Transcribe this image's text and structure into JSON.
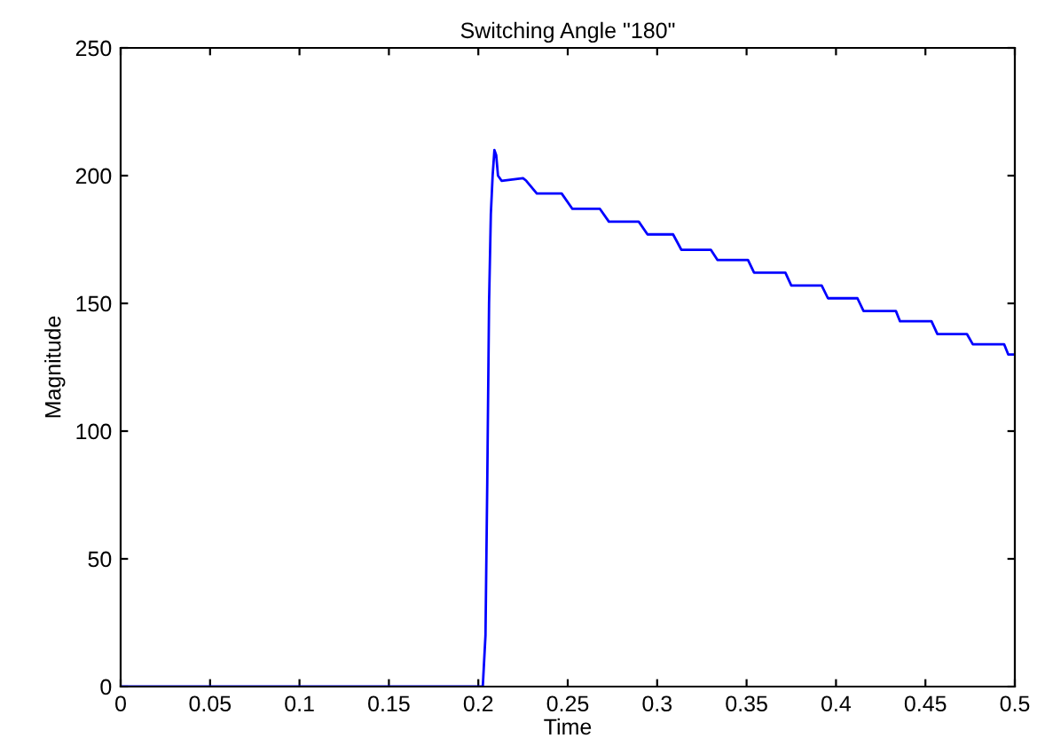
{
  "chart_data": {
    "type": "line",
    "title": "Switching Angle \"180\"",
    "xlabel": "Time",
    "ylabel": "Magnitude",
    "xlim": [
      0,
      0.5
    ],
    "ylim": [
      0,
      250
    ],
    "xticks": [
      0,
      0.05,
      0.1,
      0.15,
      0.2,
      0.25,
      0.3,
      0.35,
      0.4,
      0.45,
      0.5
    ],
    "yticks": [
      0,
      50,
      100,
      150,
      200,
      250
    ],
    "line_style": "solid",
    "marker": "none",
    "series": [
      {
        "color": "#0000ff",
        "x": [
          0,
          0.1,
          0.2025,
          0.204,
          0.205,
          0.206,
          0.207,
          0.208,
          0.209,
          0.21,
          0.211,
          0.213,
          0.225,
          0.2268,
          0.2327,
          0.2466,
          0.2526,
          0.268,
          0.273,
          0.2897,
          0.2946,
          0.3089,
          0.3135,
          0.33,
          0.3337,
          0.3508,
          0.3542,
          0.3717,
          0.375,
          0.392,
          0.3955,
          0.412,
          0.4154,
          0.4335,
          0.4358,
          0.4534,
          0.4567,
          0.4732,
          0.4765,
          0.494,
          0.4963,
          0.5
        ],
        "values": [
          0,
          0,
          0,
          20,
          80,
          150,
          185,
          200,
          210,
          208,
          200,
          198,
          199,
          198,
          193,
          193,
          187,
          187,
          182,
          182,
          177,
          177,
          171,
          171,
          167,
          167,
          162,
          162,
          157,
          157,
          152,
          152,
          147,
          147,
          143,
          143,
          138,
          138,
          134,
          134,
          130,
          130
        ]
      }
    ]
  }
}
